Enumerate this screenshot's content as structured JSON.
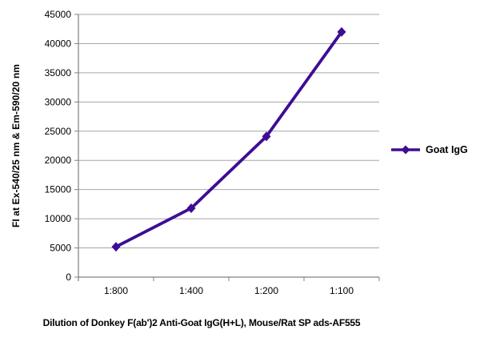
{
  "chart_data": {
    "type": "line",
    "title": "",
    "xlabel": "Dilution of Donkey F(ab')2 Anti-Goat IgG(H+L), Mouse/Rat SP ads-AF555",
    "ylabel": "FI at Ex-540/25 nm & Em-590/20 nm",
    "categories": [
      "1:800",
      "1:400",
      "1:200",
      "1:100"
    ],
    "series": [
      {
        "name": "Goat IgG",
        "values": [
          5200,
          11800,
          24100,
          42000
        ],
        "color": "#3E0D94",
        "marker": "diamond"
      }
    ],
    "ylim": [
      0,
      45000
    ],
    "ytick_step": 5000,
    "grid": "horizontal",
    "legend_position": "right"
  },
  "colors": {
    "grid": "#A6A6A6",
    "axis": "#808080",
    "text": "#000000",
    "background": "#FFFFFF"
  }
}
